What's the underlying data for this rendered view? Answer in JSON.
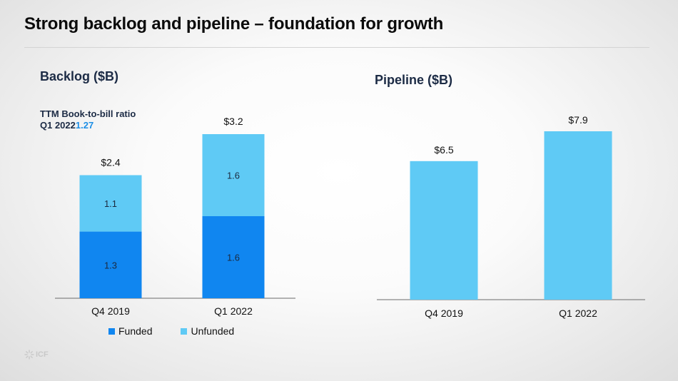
{
  "title": "Strong backlog and pipeline – foundation for growth",
  "logo": {
    "text": "ICF",
    "icon": "icf-burst-icon"
  },
  "colors": {
    "funded": "#1086f0",
    "unfunded": "#5fcaf5",
    "pipeline": "#5fcaf5",
    "axis": "#6b6b6b"
  },
  "ratio": {
    "label": "TTM Book-to-bill ratio",
    "period": "Q1 2022",
    "value": "1.27"
  },
  "legend": {
    "funded": "Funded",
    "unfunded": "Unfunded"
  },
  "chart_data": [
    {
      "type": "bar",
      "stacked": true,
      "title": "Backlog ($B)",
      "categories": [
        "Q4 2019",
        "Q1 2022"
      ],
      "series": [
        {
          "name": "Funded",
          "values": [
            1.3,
            1.6
          ],
          "labels": [
            "1.3",
            "1.6"
          ]
        },
        {
          "name": "Unfunded",
          "values": [
            1.1,
            1.6
          ],
          "labels": [
            "1.1",
            "1.6"
          ]
        }
      ],
      "totals": [
        "$2.4",
        "$3.2"
      ],
      "ylim": [
        0,
        3.2
      ]
    },
    {
      "type": "bar",
      "title": "Pipeline ($B)",
      "categories": [
        "Q4 2019",
        "Q1 2022"
      ],
      "values": [
        6.5,
        7.9
      ],
      "labels": [
        "$6.5",
        "$7.9"
      ],
      "ylim": [
        0,
        7.9
      ]
    }
  ]
}
